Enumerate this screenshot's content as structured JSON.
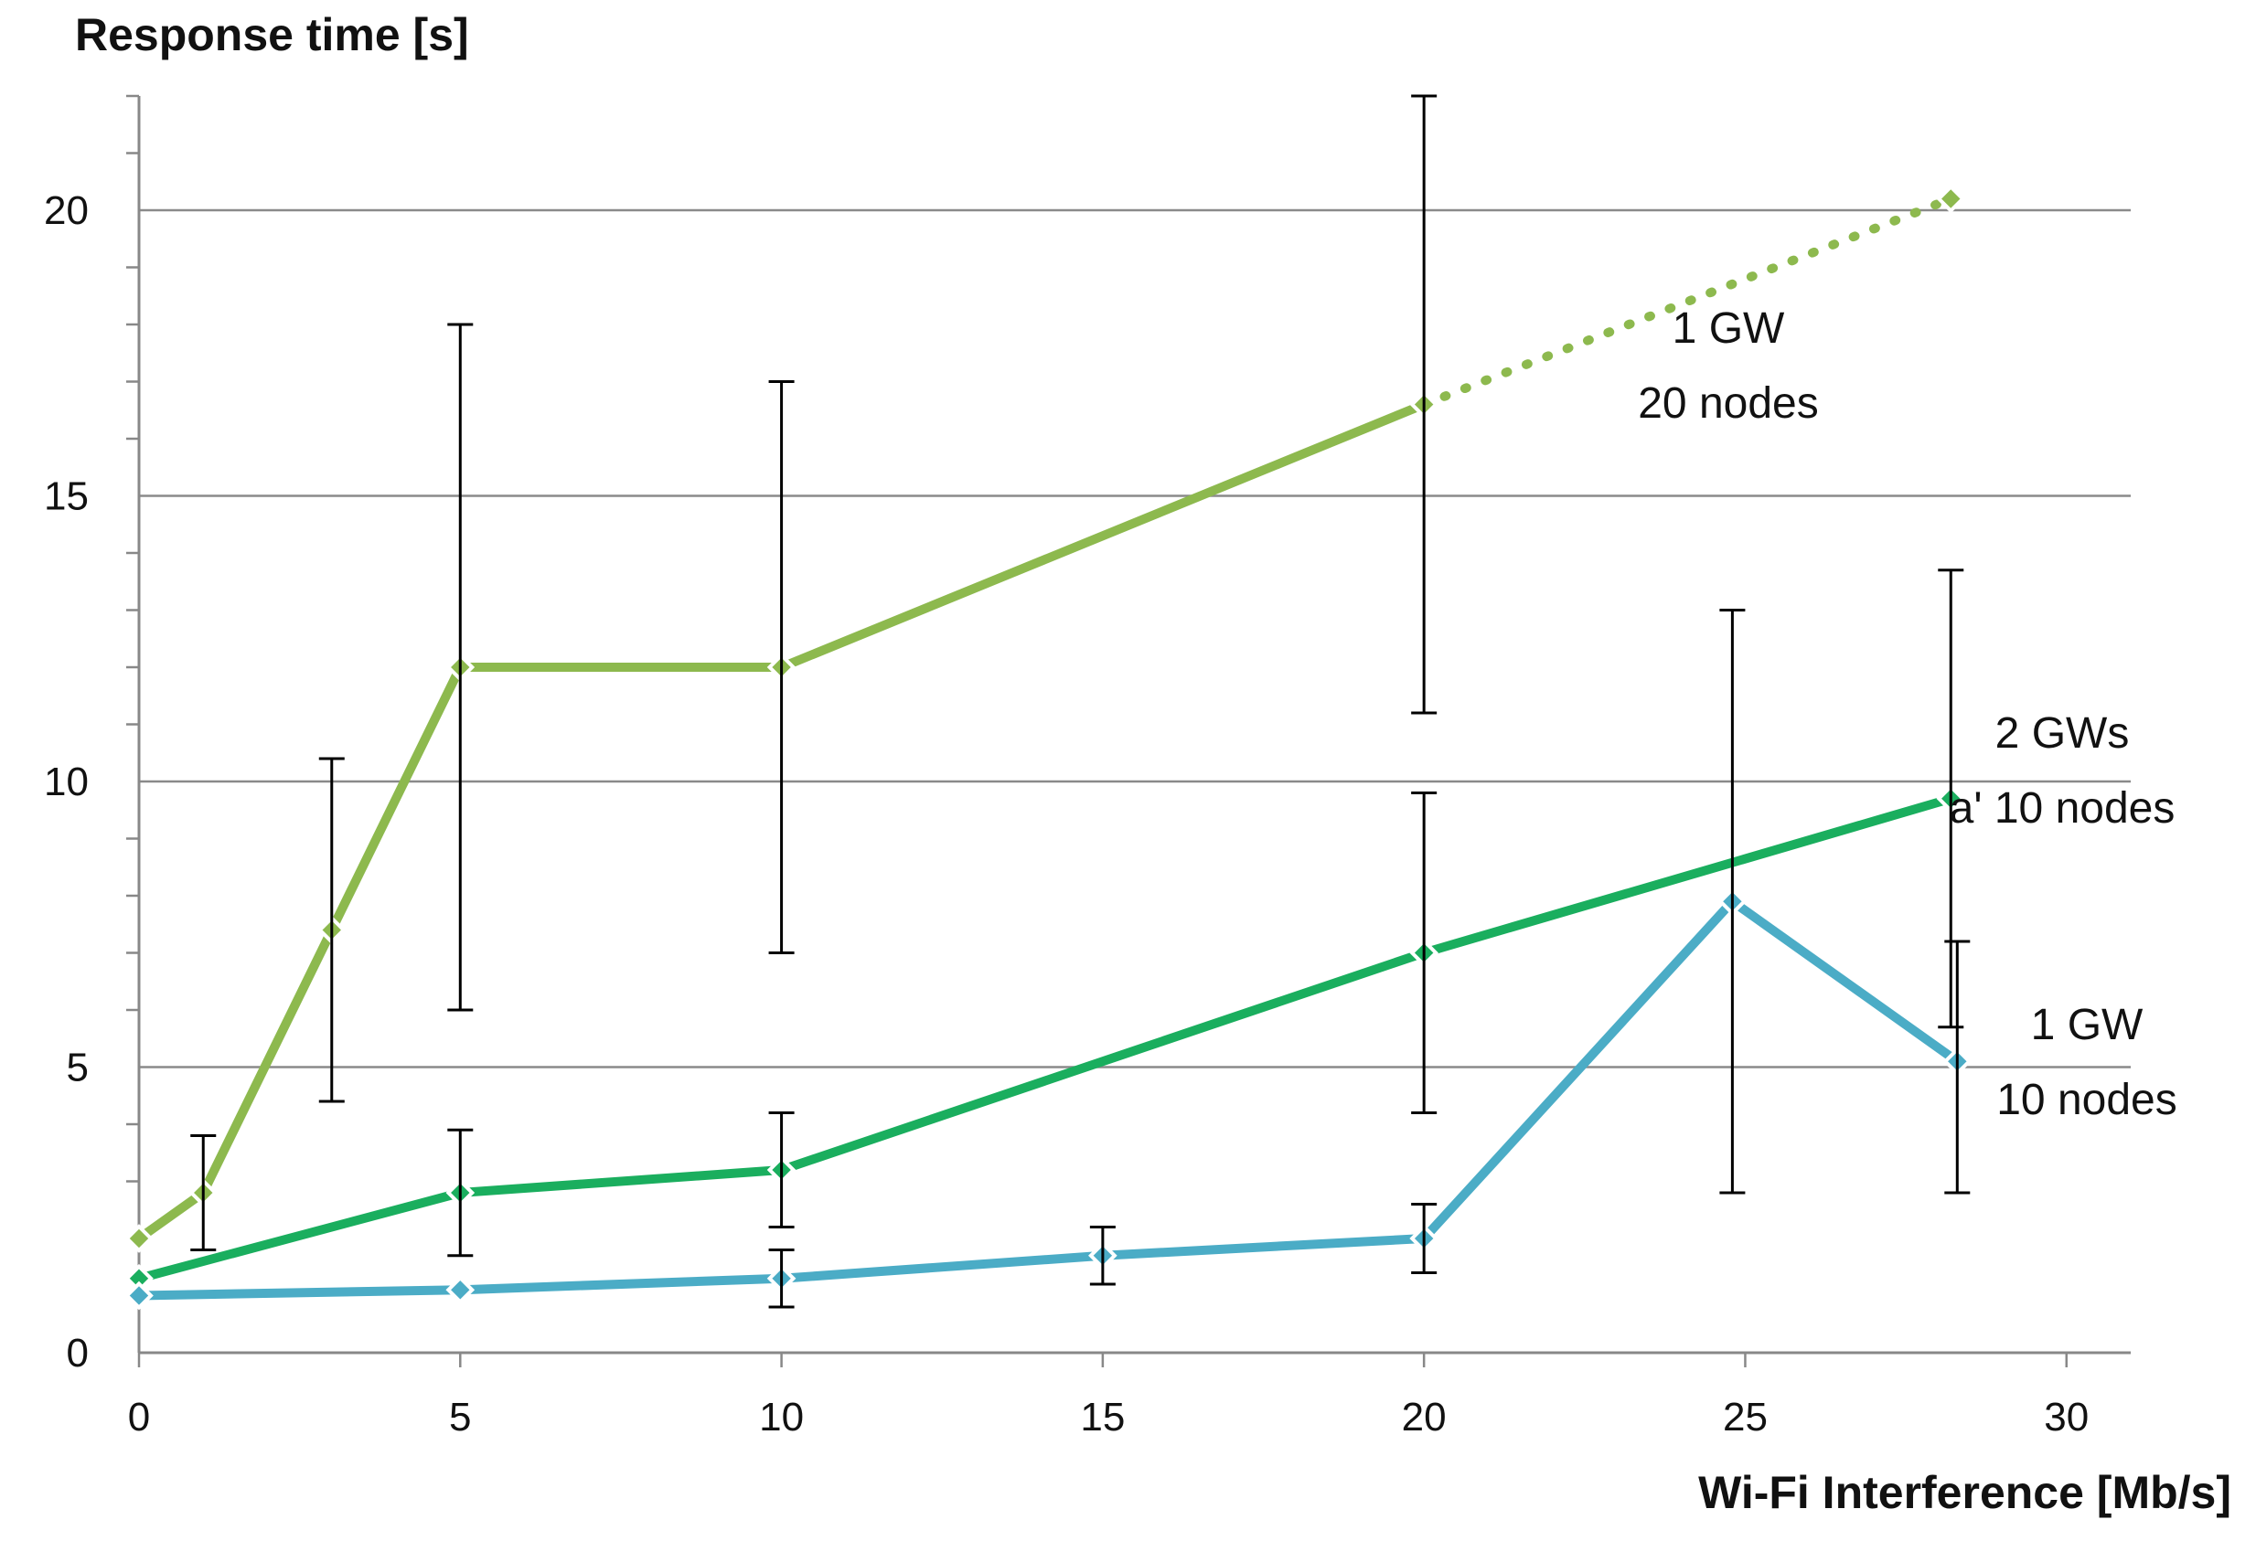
{
  "chart_data": {
    "type": "line",
    "ylabel": "Response time [s]",
    "xlabel": "Wi-Fi Interference [Mb/s]",
    "xlim": [
      0,
      31
    ],
    "ylim": [
      0,
      22
    ],
    "x_ticks": [
      0,
      5,
      10,
      15,
      20,
      25,
      30
    ],
    "y_ticks": [
      0,
      5,
      10,
      15,
      20
    ],
    "grid": "horizontal major lines at 5, 10, 15, 20",
    "series": [
      {
        "label_lines": [
          "1 GW",
          "20 nodes"
        ],
        "color": "#8DB94E",
        "points": [
          {
            "x": 0,
            "y": 2.0,
            "err_low": null,
            "err_high": null
          },
          {
            "x": 1,
            "y": 2.8,
            "err_low": 1.8,
            "err_high": 3.8
          },
          {
            "x": 3,
            "y": 7.4,
            "err_low": 4.4,
            "err_high": 10.4
          },
          {
            "x": 5,
            "y": 12.0,
            "err_low": 6.0,
            "err_high": 18.0
          },
          {
            "x": 10,
            "y": 12.0,
            "err_low": 7.0,
            "err_high": 17.0
          },
          {
            "x": 20,
            "y": 16.6,
            "err_low": 11.2,
            "err_high": 22.0
          },
          {
            "x": 28.2,
            "y": 20.2,
            "err_low": null,
            "err_high": null
          }
        ],
        "dotted_from_index": 5
      },
      {
        "label_lines": [
          "2 GWs",
          "a' 10 nodes"
        ],
        "color": "#1AAE5E",
        "points": [
          {
            "x": 0,
            "y": 1.3,
            "err_low": null,
            "err_high": null
          },
          {
            "x": 5,
            "y": 2.8,
            "err_low": 1.7,
            "err_high": 3.9
          },
          {
            "x": 10,
            "y": 3.2,
            "err_low": 2.2,
            "err_high": 4.2
          },
          {
            "x": 20,
            "y": 7.0,
            "err_low": 4.2,
            "err_high": 9.8
          },
          {
            "x": 28.2,
            "y": 9.7,
            "err_low": 5.7,
            "err_high": 13.7
          }
        ]
      },
      {
        "label_lines": [
          "1 GW",
          "10 nodes"
        ],
        "color": "#4BACC6",
        "points": [
          {
            "x": 0,
            "y": 1.0,
            "err_low": null,
            "err_high": null
          },
          {
            "x": 5,
            "y": 1.1,
            "err_low": null,
            "err_high": null
          },
          {
            "x": 10,
            "y": 1.3,
            "err_low": 0.8,
            "err_high": 1.8
          },
          {
            "x": 15,
            "y": 1.7,
            "err_low": 1.2,
            "err_high": 2.2
          },
          {
            "x": 20,
            "y": 2.0,
            "err_low": 1.4,
            "err_high": 2.6
          },
          {
            "x": 24.8,
            "y": 7.9,
            "err_low": 2.8,
            "err_high": 13.0
          },
          {
            "x": 28.3,
            "y": 5.1,
            "err_low": 2.8,
            "err_high": 7.2
          }
        ]
      }
    ]
  }
}
